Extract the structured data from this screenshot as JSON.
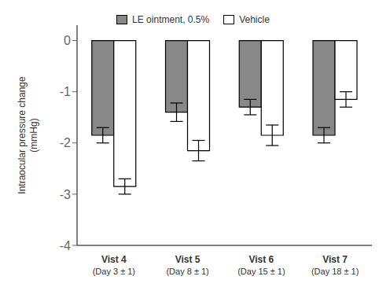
{
  "chart_data": {
    "type": "bar",
    "categories": [
      "Vist 4\n(Day 3 ± 1)",
      "Vist 5\n(Day 8 ± 1)",
      "Vist 6\n(Day 15 ± 1)",
      "Vist 7\n(Day 18 ± 1)"
    ],
    "series": [
      {
        "name": "LE ointment, 0.5%",
        "color": "#888888",
        "values": [
          -1.85,
          -1.4,
          -1.3,
          -1.85
        ],
        "errors": [
          0.15,
          0.18,
          0.15,
          0.15
        ]
      },
      {
        "name": "Vehicle",
        "color": "#ffffff",
        "values": [
          -2.85,
          -2.15,
          -1.85,
          -1.15
        ],
        "errors": [
          0.15,
          0.2,
          0.2,
          0.15
        ]
      }
    ],
    "ylabel": "Intraocular pressure change\n(mmHg)",
    "ylim": [
      -4,
      0.3
    ],
    "yticks": [
      0,
      -1,
      -2,
      -3,
      -4
    ],
    "grid": false,
    "legend": "top"
  }
}
